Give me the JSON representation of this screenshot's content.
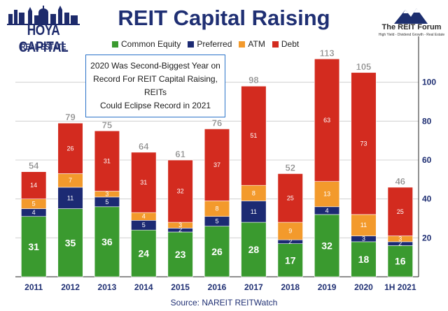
{
  "brand": {
    "line1": "HOYA CAPITAL",
    "line2": "REAL ESTATE"
  },
  "forum": {
    "name": "The REIT Forum",
    "tagline": "High Yield - Dividend Growth - Real Estate"
  },
  "annotation": {
    "lines": [
      "2020 Was Second-Biggest Year on",
      "Record For REIT Capital Raising, REITs",
      "Could Eclipse Record in 2021"
    ]
  },
  "source": "Source: NAREIT REITWatch",
  "colors": {
    "common_equity": "#3a9a2f",
    "preferred": "#1c2a73",
    "atm": "#f39a2c",
    "debt": "#d32b1f",
    "total_label": "#8a8a8a",
    "axis_text": "#1f2f73"
  },
  "chart_data": {
    "type": "bar",
    "stacked": true,
    "title": "REIT Capital Raising",
    "xlabel": "",
    "ylabel": "",
    "ylim": [
      0,
      120
    ],
    "yticks": [
      20,
      40,
      60,
      80,
      100
    ],
    "grid": true,
    "legend_position": "top",
    "categories": [
      "2011",
      "2012",
      "2013",
      "2014",
      "2015",
      "2016",
      "2017",
      "2018",
      "2019",
      "2020",
      "1H 2021"
    ],
    "series": [
      {
        "name": "Common Equity",
        "color": "#3a9a2f",
        "values": [
          31,
          35,
          36,
          24,
          23,
          26,
          28,
          17,
          32,
          18,
          16
        ]
      },
      {
        "name": "Preferred",
        "color": "#1c2a73",
        "values": [
          4,
          11,
          5,
          5,
          2,
          5,
          11,
          2,
          4,
          3,
          2
        ]
      },
      {
        "name": "ATM",
        "color": "#f39a2c",
        "values": [
          5,
          7,
          3,
          4,
          3,
          8,
          8,
          9,
          13,
          11,
          3
        ]
      },
      {
        "name": "Debt",
        "color": "#d32b1f",
        "values": [
          14,
          26,
          31,
          31,
          32,
          37,
          51,
          25,
          63,
          73,
          25
        ]
      }
    ],
    "totals": [
      54,
      79,
      75,
      64,
      61,
      76,
      98,
      52,
      113,
      105,
      46
    ]
  }
}
